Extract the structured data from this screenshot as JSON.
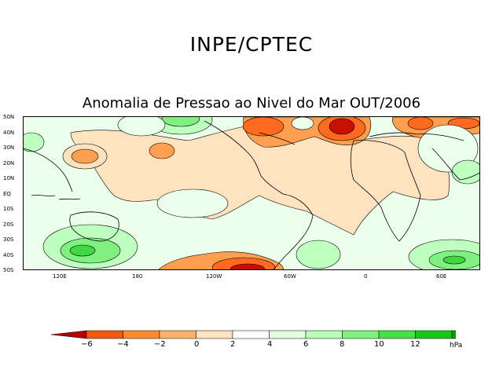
{
  "header": {
    "title": "INPE/CPTEC",
    "subtitle": "Anomalia de Pressao ao Nivel do Mar OUT/2006"
  },
  "map": {
    "lat_labels": [
      "50N",
      "40N",
      "30N",
      "20N",
      "10N",
      "EQ",
      "10S",
      "20S",
      "30S",
      "40S",
      "50S"
    ],
    "lon_labels": [
      "120E",
      "180",
      "120W",
      "60W",
      "0",
      "60E"
    ],
    "colors": {
      "neutral_land_sea": "#ffffff",
      "pos_0_2": "#e9ffe9",
      "pos_2_4": "#bfffbf",
      "pos_4_6": "#80f080",
      "pos_6_8": "#40d840",
      "neg_0_2": "#ffe2c0",
      "neg_2_4": "#ffa050",
      "neg_4_6": "#ff6a20",
      "neg_6": "#c81000"
    }
  },
  "colorbar": {
    "ticks": [
      "−6",
      "−4",
      "−2",
      "0",
      "2",
      "4",
      "6",
      "8",
      "10",
      "12"
    ],
    "units": "hPa",
    "colors": [
      "#b40000",
      "#f05a10",
      "#ff8a30",
      "#ffb06a",
      "#ffe2c0",
      "#ffffff",
      "#e2ffe2",
      "#b8ffb8",
      "#80f080",
      "#48e048",
      "#18c818",
      "#00a000",
      "#008a00"
    ]
  }
}
